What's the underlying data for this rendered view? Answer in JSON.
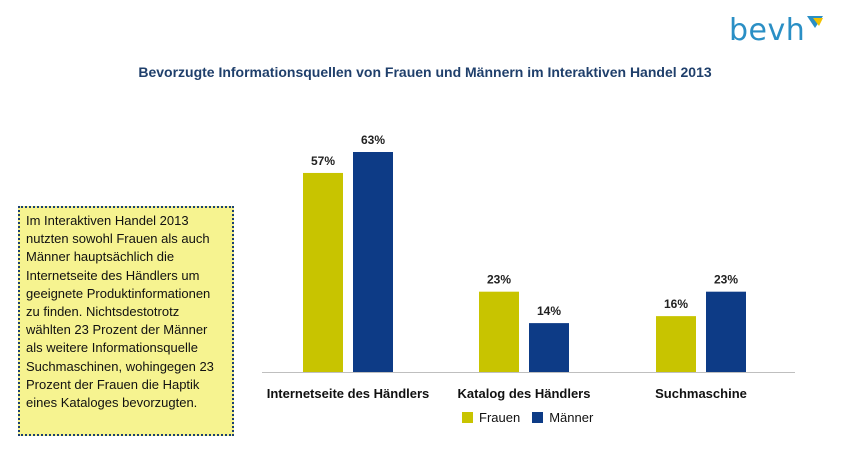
{
  "logo": {
    "text": "bevh"
  },
  "title": "Bevorzugte Informationsquellen von Frauen und Männern im Interaktiven Handel 2013",
  "callout": "Im Interaktiven Handel 2013 nutzten sowohl Frauen als auch Männer hauptsächlich die Internetseite des Händlers um geeignete Produktinformationen zu finden. Nichtsdestotrotz wählten 23 Prozent der Männer als weitere Informationsquelle Suchmaschinen, wohingegen 23 Prozent der Frauen die Haptik eines Kataloges bevorzugten.",
  "colors": {
    "frauen": "#c8c400",
    "maenner": "#0d3b86",
    "title": "#1f3f6b",
    "logo": "#2a8fc5"
  },
  "chart_data": {
    "type": "bar",
    "title": "Bevorzugte Informationsquellen von Frauen und Männern im Interaktiven Handel 2013",
    "categories": [
      "Internetseite des Händlers",
      "Katalog des Händlers",
      "Suchmaschine"
    ],
    "series": [
      {
        "name": "Frauen",
        "values": [
          57,
          23,
          16
        ],
        "labels": [
          "57%",
          "23%",
          "16%"
        ],
        "color": "#c8c400"
      },
      {
        "name": "Männer",
        "values": [
          63,
          14,
          23
        ],
        "labels": [
          "63%",
          "14%",
          "23%"
        ],
        "color": "#0d3b86"
      }
    ],
    "ylim": [
      0,
      63
    ],
    "grid": false,
    "legend": "bottom"
  }
}
